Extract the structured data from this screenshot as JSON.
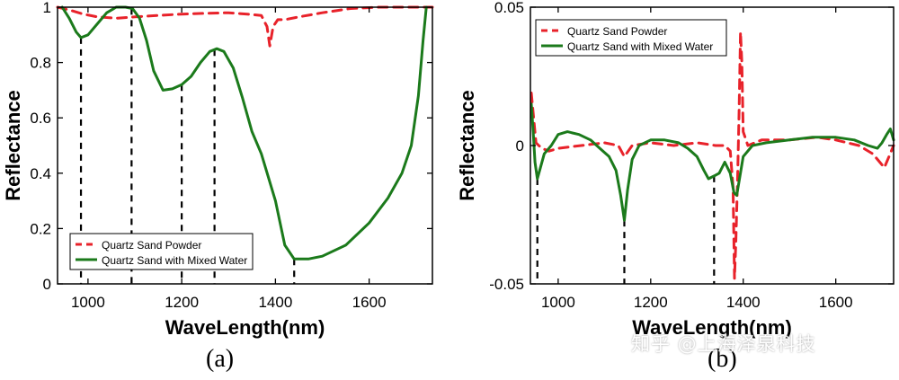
{
  "colors": {
    "powder": "#e8222a",
    "mixed": "#1b7a1b",
    "axis": "#000000",
    "refline": "#000000"
  },
  "captions": {
    "a": "(a)",
    "b": "(b)"
  },
  "watermark": "知乎 @上海泽泉科技",
  "chart_data": [
    {
      "id": "a",
      "type": "line",
      "xlabel": "WaveLength(nm)",
      "ylabel": "Reflectance",
      "xlim": [
        935,
        1735
      ],
      "ylim": [
        0,
        1
      ],
      "xticks": [
        1000,
        1200,
        1400,
        1600
      ],
      "yticks": [
        0,
        0.2,
        0.4,
        0.6,
        0.8,
        1
      ],
      "ytick_labels": [
        "0",
        "0.2",
        "0.4",
        "0.6",
        "0.8",
        "1"
      ],
      "grid": false,
      "legend": "bottom-left",
      "vlines": [
        985,
        1093,
        1200,
        1270,
        1440
      ],
      "series": [
        {
          "name": "Quartz Sand Powder",
          "style": "dashed",
          "color": "#e8222a",
          "x": [
            935,
            960,
            990,
            1020,
            1060,
            1100,
            1150,
            1200,
            1250,
            1300,
            1340,
            1370,
            1382,
            1388,
            1395,
            1405,
            1420,
            1450,
            1500,
            1560,
            1620,
            1680,
            1735
          ],
          "y": [
            1.0,
            0.99,
            0.975,
            0.965,
            0.96,
            0.965,
            0.97,
            0.975,
            0.978,
            0.98,
            0.975,
            0.97,
            0.93,
            0.86,
            0.93,
            0.955,
            0.955,
            0.965,
            0.98,
            0.995,
            1.0,
            1.0,
            1.0
          ]
        },
        {
          "name": "Quartz Sand with Mixed Water",
          "style": "solid",
          "color": "#1b7a1b",
          "x": [
            945,
            960,
            975,
            985,
            1000,
            1020,
            1040,
            1060,
            1080,
            1095,
            1110,
            1125,
            1140,
            1160,
            1180,
            1200,
            1220,
            1240,
            1260,
            1275,
            1290,
            1310,
            1330,
            1350,
            1370,
            1400,
            1420,
            1440,
            1470,
            1500,
            1550,
            1600,
            1640,
            1670,
            1690,
            1705,
            1715,
            1722
          ],
          "y": [
            1.0,
            0.96,
            0.91,
            0.89,
            0.9,
            0.94,
            0.98,
            1.0,
            1.0,
            0.995,
            0.96,
            0.88,
            0.77,
            0.7,
            0.705,
            0.72,
            0.75,
            0.8,
            0.84,
            0.85,
            0.84,
            0.78,
            0.67,
            0.55,
            0.47,
            0.3,
            0.14,
            0.09,
            0.09,
            0.1,
            0.14,
            0.22,
            0.31,
            0.4,
            0.5,
            0.68,
            0.88,
            1.0
          ]
        }
      ]
    },
    {
      "id": "b",
      "type": "line",
      "xlabel": "WaveLength(nm)",
      "ylabel": "Reflectance",
      "xlim": [
        940,
        1725
      ],
      "ylim": [
        -0.05,
        0.05
      ],
      "xticks": [
        1000,
        1200,
        1400,
        1600
      ],
      "yticks": [
        -0.05,
        0,
        0.05
      ],
      "ytick_labels": [
        "-0.05",
        "0",
        "0.05"
      ],
      "grid": false,
      "legend": "top-left",
      "vlines": [
        955,
        1143,
        1337
      ],
      "series": [
        {
          "name": "Quartz Sand Powder",
          "style": "dashed",
          "color": "#e8222a",
          "x": [
            942,
            947,
            952,
            958,
            965,
            980,
            1000,
            1050,
            1100,
            1130,
            1143,
            1160,
            1200,
            1250,
            1300,
            1340,
            1360,
            1372,
            1378,
            1381,
            1384,
            1388,
            1391,
            1394,
            1397,
            1400,
            1410,
            1440,
            1500,
            1560,
            1600,
            1650,
            1680,
            1695,
            1705,
            1715,
            1725
          ],
          "y": [
            0.019,
            0.01,
            0.001,
            0.0,
            -0.001,
            -0.002,
            -0.001,
            0.0,
            0.001,
            0.0,
            -0.004,
            0.0,
            0.001,
            0.0,
            0.001,
            0.0,
            0.0,
            -0.002,
            -0.015,
            -0.048,
            -0.035,
            -0.01,
            0.012,
            0.041,
            0.03,
            0.005,
            0.0,
            0.002,
            0.002,
            0.003,
            0.002,
            0.0,
            -0.003,
            -0.006,
            -0.008,
            -0.004,
            0.0
          ]
        },
        {
          "name": "Quartz Sand with Mixed Water",
          "style": "solid",
          "color": "#1b7a1b",
          "x": [
            942,
            946,
            950,
            955,
            960,
            970,
            985,
            1000,
            1020,
            1045,
            1070,
            1090,
            1110,
            1125,
            1135,
            1143,
            1150,
            1160,
            1175,
            1200,
            1230,
            1260,
            1280,
            1300,
            1315,
            1325,
            1337,
            1348,
            1360,
            1372,
            1380,
            1386,
            1392,
            1400,
            1420,
            1450,
            1500,
            1550,
            1600,
            1640,
            1670,
            1690,
            1700,
            1710,
            1718,
            1725
          ],
          "y": [
            0.015,
            0.005,
            -0.006,
            -0.012,
            -0.009,
            -0.003,
            0.0,
            0.004,
            0.005,
            0.004,
            0.002,
            -0.001,
            -0.004,
            -0.009,
            -0.018,
            -0.027,
            -0.016,
            -0.005,
            0.0,
            0.002,
            0.002,
            0.001,
            -0.001,
            -0.004,
            -0.009,
            -0.012,
            -0.011,
            -0.01,
            -0.006,
            -0.01,
            -0.017,
            -0.018,
            -0.012,
            -0.004,
            0.0,
            0.001,
            0.002,
            0.003,
            0.003,
            0.002,
            0.0,
            -0.001,
            0.001,
            0.004,
            0.006,
            0.002
          ]
        }
      ]
    }
  ]
}
